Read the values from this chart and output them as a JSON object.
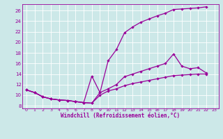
{
  "bg_color": "#cce8e8",
  "line_color": "#990099",
  "grid_color": "#ffffff",
  "xlabel": "Windchill (Refroidissement éolien,°C)",
  "xlim": [
    -0.5,
    23.5
  ],
  "ylim": [
    7.5,
    27.2
  ],
  "yticks": [
    8,
    10,
    12,
    14,
    16,
    18,
    20,
    22,
    24,
    26
  ],
  "xticks": [
    0,
    1,
    2,
    3,
    4,
    5,
    6,
    7,
    8,
    9,
    10,
    11,
    12,
    13,
    14,
    15,
    16,
    17,
    18,
    19,
    20,
    21,
    22,
    23
  ],
  "line1_x": [
    0,
    1,
    2,
    3,
    4,
    5,
    6,
    7,
    8,
    9,
    10,
    11,
    12,
    13,
    14,
    15,
    16,
    17,
    18,
    19,
    20,
    21,
    22
  ],
  "line1_y": [
    11.0,
    10.5,
    9.7,
    9.3,
    9.1,
    9.0,
    8.8,
    8.6,
    13.6,
    10.5,
    16.5,
    18.6,
    21.8,
    22.9,
    23.8,
    24.4,
    25.0,
    25.5,
    26.2,
    26.3,
    26.4,
    26.5,
    26.7
  ],
  "line2_x": [
    0,
    1,
    2,
    3,
    4,
    5,
    6,
    7,
    8,
    9,
    10,
    11,
    12,
    13,
    14,
    15,
    16,
    17,
    18,
    19,
    20,
    21,
    22
  ],
  "line2_y": [
    11.0,
    10.5,
    9.7,
    9.3,
    9.1,
    9.0,
    8.8,
    8.6,
    8.5,
    10.5,
    11.2,
    12.0,
    13.5,
    14.0,
    14.5,
    15.0,
    15.5,
    16.0,
    17.8,
    15.5,
    15.0,
    15.2,
    14.2
  ],
  "line3_x": [
    0,
    1,
    2,
    3,
    4,
    5,
    6,
    7,
    8,
    9,
    10,
    11,
    12,
    13,
    14,
    15,
    16,
    17,
    18,
    19,
    20,
    21,
    22
  ],
  "line3_y": [
    11.0,
    10.5,
    9.7,
    9.3,
    9.1,
    9.0,
    8.8,
    8.6,
    8.5,
    10.0,
    10.8,
    11.2,
    11.8,
    12.2,
    12.5,
    12.8,
    13.1,
    13.4,
    13.7,
    13.8,
    13.9,
    14.0,
    14.0
  ],
  "marker": "D",
  "marker_size": 2.2,
  "linewidth": 0.9
}
